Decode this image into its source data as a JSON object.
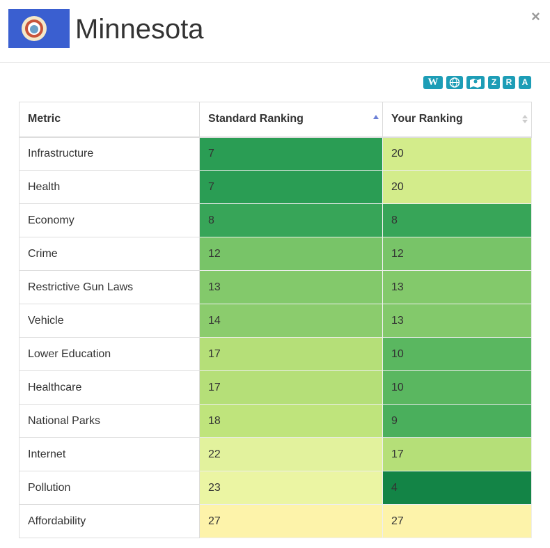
{
  "header": {
    "title": "Minnesota",
    "close": "×"
  },
  "toolbar": {
    "buttons": [
      "W",
      "Z",
      "R",
      "A"
    ]
  },
  "table": {
    "columns": [
      "Metric",
      "Standard Ranking",
      "Your Ranking"
    ],
    "rows": [
      [
        "Infrastructure",
        7,
        20
      ],
      [
        "Health",
        7,
        20
      ],
      [
        "Economy",
        8,
        8
      ],
      [
        "Crime",
        12,
        12
      ],
      [
        "Restrictive Gun Laws",
        13,
        13
      ],
      [
        "Vehicle",
        14,
        13
      ],
      [
        "Lower Education",
        17,
        10
      ],
      [
        "Healthcare",
        17,
        10
      ],
      [
        "National Parks",
        18,
        9
      ],
      [
        "Internet",
        22,
        17
      ],
      [
        "Pollution",
        23,
        4
      ],
      [
        "Affordability",
        27,
        27
      ]
    ],
    "cell_colors": [
      [
        "#2a9d54",
        "#d3ec8b"
      ],
      [
        "#2a9d54",
        "#d3ec8b"
      ],
      [
        "#37a558",
        "#37a558"
      ],
      [
        "#78c468",
        "#78c468"
      ],
      [
        "#83c96b",
        "#83c96b"
      ],
      [
        "#8bcc6d",
        "#83c96b"
      ],
      [
        "#b5df78",
        "#5ab760"
      ],
      [
        "#b5df78",
        "#5ab760"
      ],
      [
        "#bfe47c",
        "#4aaf5c"
      ],
      [
        "#e2f29d",
        "#b5df78"
      ],
      [
        "#ebf5a3",
        "#138446"
      ],
      [
        "#fdf3aa",
        "#fdf3aa"
      ]
    ]
  }
}
